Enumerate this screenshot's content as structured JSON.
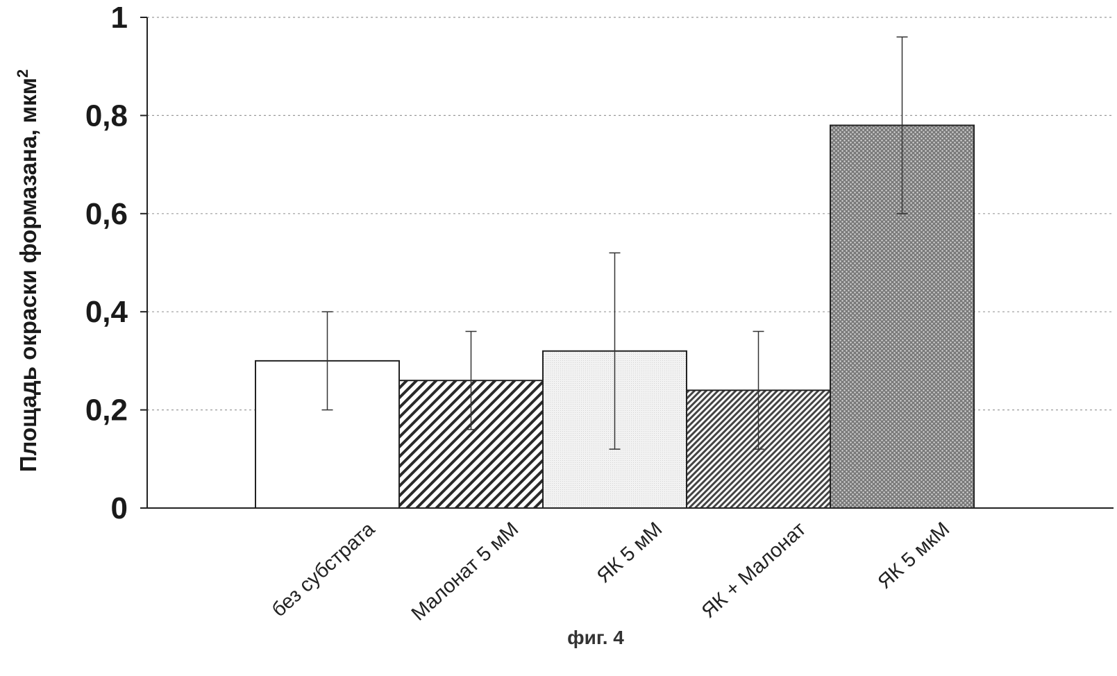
{
  "chart_data": {
    "type": "bar",
    "categories": [
      "без субстрата",
      "Малонат 5 мМ",
      "ЯК 5 мМ",
      "ЯК +  Малонат",
      "ЯК 5 мкМ"
    ],
    "values": [
      0.3,
      0.26,
      0.32,
      0.24,
      0.78
    ],
    "error_bars": [
      {
        "low": 0.2,
        "high": 0.4
      },
      {
        "low": 0.16,
        "high": 0.36
      },
      {
        "low": 0.12,
        "high": 0.52
      },
      {
        "low": 0.12,
        "high": 0.36
      },
      {
        "low": 0.6,
        "high": 0.96
      }
    ],
    "fill_patterns": [
      "white",
      "diagonal-hatch",
      "light-gray-fine",
      "diagonal-hatch-fine",
      "dotted-crosshatch"
    ],
    "title": "",
    "xlabel": "",
    "ylabel": "Площадь окраски формазана, мкм",
    "ylabel_superscript": "2",
    "ylim": [
      0,
      1
    ],
    "yticks": [
      "0",
      "0,2",
      "0,4",
      "0,6",
      "0,8",
      "1"
    ],
    "ytick_values": [
      0,
      0.2,
      0.4,
      0.6,
      0.8,
      1
    ],
    "grid": true,
    "legend": "none",
    "caption": "фиг. 4"
  }
}
